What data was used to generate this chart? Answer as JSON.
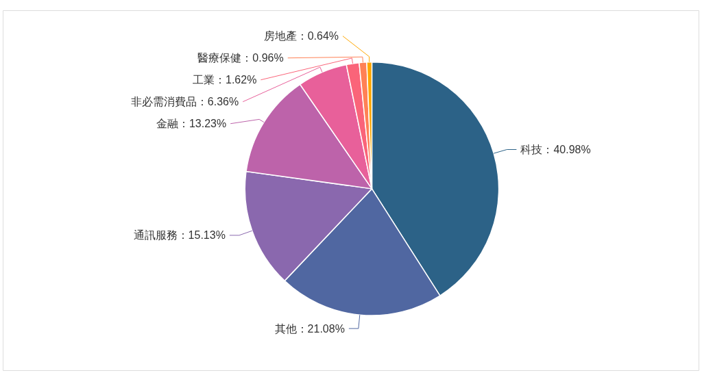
{
  "chart_data": {
    "type": "pie",
    "categories": [
      "科技",
      "其他",
      "通訊服務",
      "金融",
      "非必需消費品",
      "工業",
      "醫療保健",
      "房地產"
    ],
    "values": [
      40.98,
      21.08,
      15.13,
      13.23,
      6.36,
      1.62,
      0.96,
      0.64
    ],
    "colors": [
      "#2c6287",
      "#5067a1",
      "#8a68ae",
      "#bd63aa",
      "#e8609a",
      "#fa6479",
      "#ff8155",
      "#ffa600"
    ],
    "value_labels": [
      "40.98%",
      "21.08%",
      "15.13%",
      "13.23%",
      "6.36%",
      "1.62%",
      "0.96%",
      "0.64%"
    ]
  }
}
